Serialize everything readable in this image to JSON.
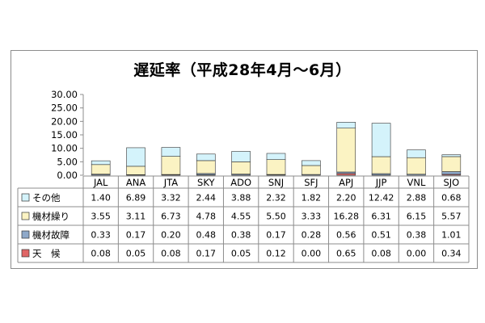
{
  "chart_data": {
    "type": "bar",
    "stacked": true,
    "title": "遅延率（平成28年4月～6月）",
    "categories": [
      "JAL",
      "ANA",
      "JTA",
      "SKY",
      "ADO",
      "SNJ",
      "SFJ",
      "APJ",
      "JJP",
      "VNL",
      "SJO"
    ],
    "ylim": [
      0,
      30
    ],
    "yticks": [
      "0.00",
      "5.00",
      "10.00",
      "15.00",
      "20.00",
      "25.00",
      "30.00"
    ],
    "grid": false,
    "legend": "table",
    "series": [
      {
        "name": "天　候",
        "color": "#e06666",
        "values": [
          0.08,
          0.05,
          0.08,
          0.17,
          0.05,
          0.12,
          0.0,
          0.65,
          0.08,
          0.0,
          0.34
        ],
        "labels": [
          "0.08",
          "0.05",
          "0.08",
          "0.17",
          "0.05",
          "0.12",
          "0.00",
          "0.65",
          "0.08",
          "0.00",
          "0.34"
        ]
      },
      {
        "name": "機材故障",
        "color": "#8fa9c9",
        "values": [
          0.33,
          0.17,
          0.2,
          0.48,
          0.38,
          0.17,
          0.28,
          0.56,
          0.51,
          0.38,
          1.01
        ],
        "labels": [
          "0.33",
          "0.17",
          "0.20",
          "0.48",
          "0.38",
          "0.17",
          "0.28",
          "0.56",
          "0.51",
          "0.38",
          "1.01"
        ]
      },
      {
        "name": "機材繰り",
        "color": "#fbf3c3",
        "values": [
          3.55,
          3.11,
          6.73,
          4.78,
          4.55,
          5.5,
          3.33,
          16.28,
          6.31,
          6.15,
          5.57
        ],
        "labels": [
          "3.55",
          "3.11",
          "6.73",
          "4.78",
          "4.55",
          "5.50",
          "3.33",
          "16.28",
          "6.31",
          "6.15",
          "5.57"
        ]
      },
      {
        "name": "その他",
        "color": "#d4f3fb",
        "values": [
          1.4,
          6.89,
          3.32,
          2.44,
          3.88,
          2.32,
          1.82,
          2.2,
          12.42,
          2.88,
          0.68
        ],
        "labels": [
          "1.40",
          "6.89",
          "3.32",
          "2.44",
          "3.88",
          "2.32",
          "1.82",
          "2.20",
          "12.42",
          "2.88",
          "0.68"
        ]
      }
    ]
  }
}
